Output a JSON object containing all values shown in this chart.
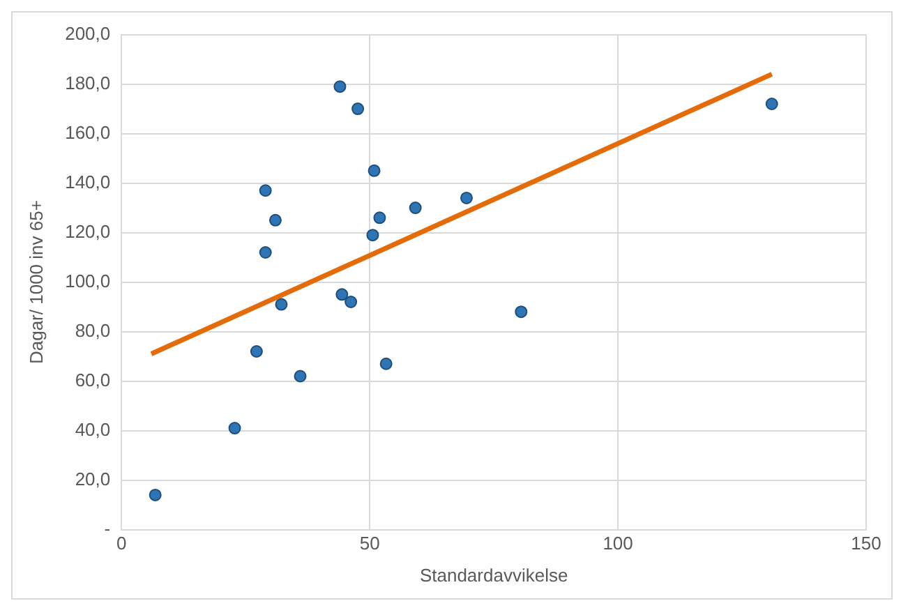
{
  "chart_data": {
    "type": "scatter",
    "xlabel": "Standardavvikelse",
    "ylabel": "Dagar/ 1000 inv 65+",
    "xlim": [
      0,
      150
    ],
    "xticks": [
      0,
      50,
      100,
      150
    ],
    "ylim": [
      0,
      200
    ],
    "yticks": [
      {
        "value": 0,
        "label": "-"
      },
      {
        "value": 20,
        "label": "20,0"
      },
      {
        "value": 40,
        "label": "40,0"
      },
      {
        "value": 60,
        "label": "60,0"
      },
      {
        "value": 80,
        "label": "80,0"
      },
      {
        "value": 100,
        "label": "100,0"
      },
      {
        "value": 120,
        "label": "120,0"
      },
      {
        "value": 140,
        "label": "140,0"
      },
      {
        "value": 160,
        "label": "160,0"
      },
      {
        "value": 180,
        "label": "180,0"
      },
      {
        "value": 200,
        "label": "200,0"
      }
    ],
    "grid": true,
    "legend": false,
    "series": [
      {
        "marker": "circle",
        "color": "#2e75b6",
        "x": [
          6.8,
          22.8,
          27.2,
          29,
          29,
          31,
          32.2,
          36,
          44,
          44.4,
          46.2,
          47.6,
          50.9,
          50.6,
          52,
          53.3,
          59.2,
          69.5,
          80.5,
          131
        ],
        "values": [
          14,
          41,
          72,
          112,
          137,
          125,
          91,
          62,
          179,
          95,
          92,
          170,
          145,
          119,
          126,
          67,
          130,
          134,
          88,
          172
        ]
      },
      {
        "type": "line",
        "marker": "none",
        "color": "#e36c09",
        "x": [
          6,
          131
        ],
        "values": [
          71,
          184
        ]
      }
    ]
  }
}
